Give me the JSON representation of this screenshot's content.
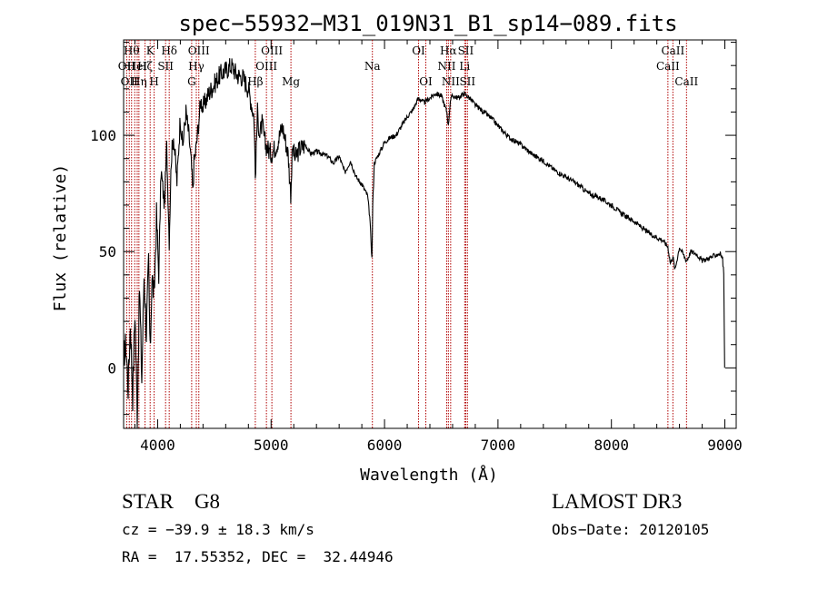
{
  "chart_data": {
    "type": "line",
    "title": "spec−55932−M31_019N31_B1_sp14−089.fits",
    "xlabel": "Wavelength (Å)",
    "ylabel": "Flux (relative)",
    "xlim": [
      3700,
      9100
    ],
    "ylim": [
      -26,
      141
    ],
    "xticks": [
      4000,
      5000,
      6000,
      7000,
      8000,
      9000
    ],
    "yticks": [
      0,
      50,
      100
    ],
    "line_color": "#000000",
    "marker_color": "#b00000",
    "series": [
      {
        "name": "flux",
        "x": [
          3700,
          3720,
          3740,
          3760,
          3780,
          3800,
          3820,
          3840,
          3860,
          3880,
          3900,
          3920,
          3934,
          3950,
          3969,
          3990,
          4010,
          4030,
          4060,
          4080,
          4102,
          4120,
          4140,
          4170,
          4200,
          4220,
          4250,
          4280,
          4300,
          4310,
          4320,
          4340,
          4360,
          4380,
          4400,
          4450,
          4500,
          4550,
          4600,
          4650,
          4700,
          4750,
          4800,
          4850,
          4861,
          4880,
          4900,
          4920,
          4950,
          5000,
          5050,
          5100,
          5150,
          5173,
          5190,
          5210,
          5250,
          5300,
          5350,
          5400,
          5450,
          5500,
          5550,
          5600,
          5650,
          5700,
          5750,
          5800,
          5850,
          5870,
          5889,
          5896,
          5910,
          5950,
          6000,
          6050,
          6100,
          6150,
          6200,
          6250,
          6300,
          6350,
          6400,
          6450,
          6500,
          6550,
          6563,
          6580,
          6600,
          6650,
          6700,
          6750,
          6800,
          6850,
          6900,
          6950,
          7000,
          7100,
          7200,
          7300,
          7400,
          7500,
          7600,
          7700,
          7800,
          7900,
          8000,
          8100,
          8200,
          8300,
          8400,
          8450,
          8498,
          8520,
          8542,
          8560,
          8600,
          8662,
          8700,
          8750,
          8800,
          8850,
          8900,
          8940,
          8960,
          8980,
          8990,
          8998
        ],
        "values": [
          5,
          10,
          -8,
          20,
          -12,
          25,
          -20,
          35,
          -5,
          40,
          15,
          45,
          5,
          40,
          30,
          65,
          40,
          85,
          70,
          95,
          55,
          90,
          100,
          80,
          108,
          95,
          110,
          98,
          85,
          75,
          88,
          95,
          105,
          115,
          112,
          118,
          122,
          126,
          128,
          130,
          126,
          125,
          120,
          108,
          82,
          110,
          100,
          105,
          96,
          92,
          96,
          104,
          92,
          75,
          95,
          90,
          94,
          96,
          92,
          93,
          92,
          91,
          88,
          91,
          84,
          89,
          82,
          79,
          74,
          65,
          47,
          70,
          88,
          92,
          97,
          99,
          100,
          104,
          108,
          111,
          116,
          114,
          116,
          118,
          117,
          110,
          104,
          115,
          117,
          116,
          118,
          116,
          113,
          111,
          109,
          107,
          104,
          99,
          96,
          92,
          89,
          85,
          82,
          79,
          75,
          73,
          70,
          66,
          63,
          59,
          56,
          55,
          52,
          45,
          48,
          42,
          52,
          46,
          50,
          49,
          46,
          47,
          48,
          49,
          49,
          47,
          40,
          0
        ]
      }
    ],
    "lines": [
      {
        "wave": 3727,
        "label": "OII",
        "row": 2
      },
      {
        "wave": 3750,
        "label": "OII",
        "row": 3
      },
      {
        "wave": 3770,
        "label": "Hθ",
        "row": 1
      },
      {
        "wave": 3798,
        "label": "",
        "row": 1
      },
      {
        "wave": 3820,
        "label": "HeI",
        "row": 2
      },
      {
        "wave": 3835,
        "label": "Hη",
        "row": 3
      },
      {
        "wave": 3889,
        "label": "Hζ",
        "row": 2
      },
      {
        "wave": 3934,
        "label": "K",
        "row": 1
      },
      {
        "wave": 3969,
        "label": "H",
        "row": 3
      },
      {
        "wave": 4070,
        "label": "SII",
        "row": 2
      },
      {
        "wave": 4102,
        "label": "Hδ",
        "row": 1
      },
      {
        "wave": 4300,
        "label": "G",
        "row": 3
      },
      {
        "wave": 4341,
        "label": "Hγ",
        "row": 2
      },
      {
        "wave": 4363,
        "label": "OIII",
        "row": 1
      },
      {
        "wave": 4861,
        "label": "Hβ",
        "row": 3
      },
      {
        "wave": 4959,
        "label": "OIII",
        "row": 2
      },
      {
        "wave": 5007,
        "label": "OIII",
        "row": 1
      },
      {
        "wave": 5175,
        "label": "Mg",
        "row": 3
      },
      {
        "wave": 5893,
        "label": "Na",
        "row": 2
      },
      {
        "wave": 6300,
        "label": "OI",
        "row": 1
      },
      {
        "wave": 6364,
        "label": "OI",
        "row": 3
      },
      {
        "wave": 6548,
        "label": "NII",
        "row": 2
      },
      {
        "wave": 6563,
        "label": "Hα",
        "row": 1
      },
      {
        "wave": 6583,
        "label": "NII",
        "row": 3
      },
      {
        "wave": 6707,
        "label": "Li",
        "row": 2
      },
      {
        "wave": 6716,
        "label": "SII",
        "row": 1
      },
      {
        "wave": 6731,
        "label": "SII",
        "row": 3
      },
      {
        "wave": 8498,
        "label": "CaII",
        "row": 2
      },
      {
        "wave": 8542,
        "label": "CaII",
        "row": 1
      },
      {
        "wave": 8662,
        "label": "CaII",
        "row": 3
      }
    ]
  },
  "info": {
    "class_line": "STAR    G8",
    "survey": "LAMOST DR3",
    "cz_line": "cz = −39.9 ± 18.3 km/s",
    "obs_date": "Obs−Date: 20120105",
    "radec_line": "RA =  17.55352, DEC =  32.44946"
  }
}
